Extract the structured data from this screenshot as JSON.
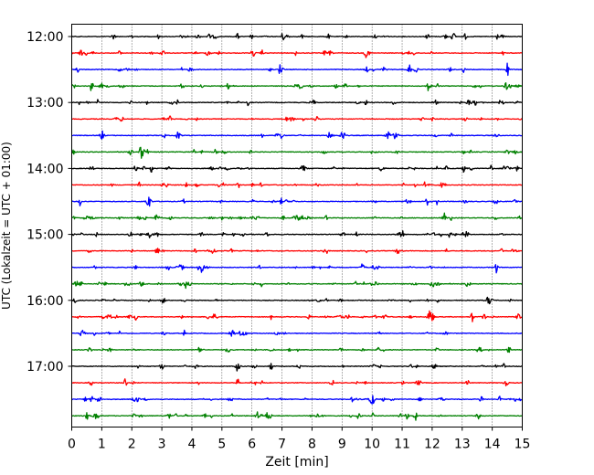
{
  "chart_data": {
    "type": "helicorder",
    "xlabel": "Zeit  [min]",
    "ylabel": "UTC (Lokalzeit = UTC + 01:00)",
    "xlim": [
      0,
      15
    ],
    "x_ticks": [
      "0",
      "1",
      "2",
      "3",
      "4",
      "5",
      "6",
      "7",
      "8",
      "9",
      "10",
      "11",
      "12",
      "13",
      "14",
      "15"
    ],
    "y_ticks": [
      {
        "label": "12:00",
        "trace": 0
      },
      {
        "label": "13:00",
        "trace": 4
      },
      {
        "label": "14:00",
        "trace": 8
      },
      {
        "label": "15:00",
        "trace": 12
      },
      {
        "label": "16:00",
        "trace": 16
      },
      {
        "label": "17:00",
        "trace": 20
      }
    ],
    "trace_interval_min": 15,
    "trace_count": 24,
    "trace_colors": [
      "#000000",
      "#ff0000",
      "#0000ff",
      "#008000"
    ],
    "vertical_grid": "dotted",
    "series": [
      {
        "start": "12:00",
        "color": "#000000"
      },
      {
        "start": "12:15",
        "color": "#ff0000"
      },
      {
        "start": "12:30",
        "color": "#0000ff"
      },
      {
        "start": "12:45",
        "color": "#008000"
      },
      {
        "start": "13:00",
        "color": "#000000"
      },
      {
        "start": "13:15",
        "color": "#ff0000"
      },
      {
        "start": "13:30",
        "color": "#0000ff"
      },
      {
        "start": "13:45",
        "color": "#008000"
      },
      {
        "start": "14:00",
        "color": "#000000"
      },
      {
        "start": "14:15",
        "color": "#ff0000"
      },
      {
        "start": "14:30",
        "color": "#0000ff"
      },
      {
        "start": "14:45",
        "color": "#008000"
      },
      {
        "start": "15:00",
        "color": "#000000"
      },
      {
        "start": "15:15",
        "color": "#ff0000"
      },
      {
        "start": "15:30",
        "color": "#0000ff"
      },
      {
        "start": "15:45",
        "color": "#008000"
      },
      {
        "start": "16:00",
        "color": "#000000"
      },
      {
        "start": "16:15",
        "color": "#ff0000"
      },
      {
        "start": "16:30",
        "color": "#0000ff"
      },
      {
        "start": "16:45",
        "color": "#008000"
      },
      {
        "start": "17:00",
        "color": "#000000"
      },
      {
        "start": "17:15",
        "color": "#ff0000"
      },
      {
        "start": "17:30",
        "color": "#0000ff"
      },
      {
        "start": "17:45",
        "color": "#008000"
      }
    ]
  }
}
